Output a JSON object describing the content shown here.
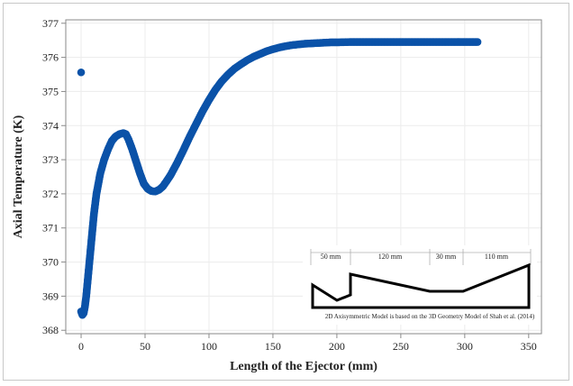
{
  "chart_data": {
    "type": "scatter",
    "title": "",
    "xlabel": "Length of the Ejector (mm)",
    "ylabel": "Axial Temperature (K)",
    "xlim": [
      -12,
      360
    ],
    "ylim": [
      367.9,
      377.1
    ],
    "xticks": [
      0,
      50,
      100,
      150,
      200,
      250,
      300,
      350
    ],
    "yticks": [
      368,
      369,
      370,
      371,
      372,
      373,
      374,
      375,
      376,
      377
    ],
    "grid": true,
    "series": [
      {
        "marker": "circle",
        "color": "#0b52a8",
        "points": [
          [
            0.0,
            375.56
          ],
          [
            0.0,
            368.55
          ],
          [
            1.0,
            368.45
          ],
          [
            2.0,
            368.5
          ],
          [
            3.0,
            368.7
          ],
          [
            4.0,
            369.0
          ],
          [
            5.0,
            369.4
          ],
          [
            6.0,
            369.8
          ],
          [
            8.0,
            370.6
          ],
          [
            10.0,
            371.4
          ],
          [
            12.0,
            372.0
          ],
          [
            15.0,
            372.6
          ],
          [
            18.0,
            373.0
          ],
          [
            21.0,
            373.3
          ],
          [
            24.0,
            373.55
          ],
          [
            27.0,
            373.68
          ],
          [
            30.0,
            373.75
          ],
          [
            33.0,
            373.78
          ],
          [
            35.0,
            373.75
          ],
          [
            37.0,
            373.6
          ],
          [
            40.0,
            373.3
          ],
          [
            43.0,
            372.95
          ],
          [
            46.0,
            372.6
          ],
          [
            49.0,
            372.3
          ],
          [
            52.0,
            372.15
          ],
          [
            55.0,
            372.08
          ],
          [
            58.0,
            372.07
          ],
          [
            61.0,
            372.12
          ],
          [
            64.0,
            372.22
          ],
          [
            67.0,
            372.38
          ],
          [
            70.0,
            372.55
          ],
          [
            75.0,
            372.9
          ],
          [
            80.0,
            373.28
          ],
          [
            85.0,
            373.68
          ],
          [
            90.0,
            374.05
          ],
          [
            95.0,
            374.42
          ],
          [
            100.0,
            374.75
          ],
          [
            105.0,
            375.05
          ],
          [
            110.0,
            375.3
          ],
          [
            115.0,
            375.5
          ],
          [
            120.0,
            375.67
          ],
          [
            125.0,
            375.8
          ],
          [
            130.0,
            375.92
          ],
          [
            135.0,
            376.02
          ],
          [
            140.0,
            376.1
          ],
          [
            145.0,
            376.18
          ],
          [
            150.0,
            376.24
          ],
          [
            155.0,
            376.29
          ],
          [
            160.0,
            376.33
          ],
          [
            165.0,
            376.36
          ],
          [
            170.0,
            376.38
          ],
          [
            175.0,
            376.4
          ],
          [
            180.0,
            376.41
          ],
          [
            185.0,
            376.42
          ],
          [
            190.0,
            376.43
          ],
          [
            195.0,
            376.44
          ],
          [
            200.0,
            376.44
          ],
          [
            210.0,
            376.45
          ],
          [
            220.0,
            376.45
          ],
          [
            230.0,
            376.45
          ],
          [
            240.0,
            376.45
          ],
          [
            250.0,
            376.45
          ],
          [
            260.0,
            376.45
          ],
          [
            270.0,
            376.45
          ],
          [
            280.0,
            376.45
          ],
          [
            290.0,
            376.45
          ],
          [
            300.0,
            376.45
          ],
          [
            310.0,
            376.45
          ]
        ]
      }
    ],
    "inset": {
      "dimension_labels": [
        "50 mm",
        "120 mm",
        "30 mm",
        "110 mm"
      ],
      "caption": "2D Axisymmetric Model is based on the 3D Geometry Model of Shah et al. (2014)"
    }
  }
}
